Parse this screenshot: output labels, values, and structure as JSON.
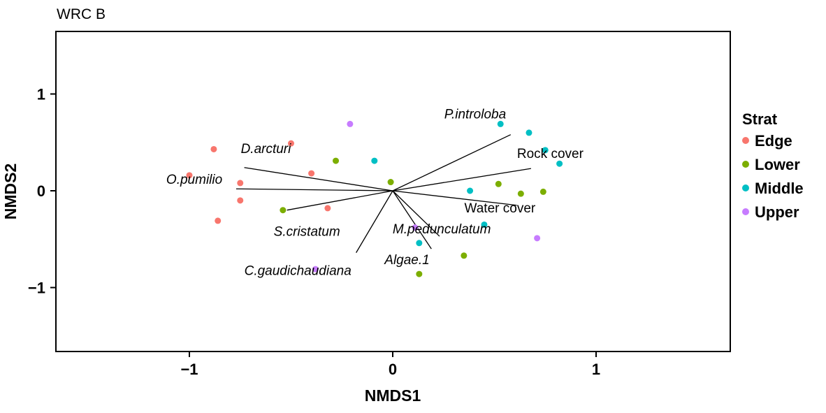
{
  "chart_data": {
    "type": "scatter",
    "title": "WRC B",
    "xlabel": "NMDS1",
    "ylabel": "NMDS2",
    "xlim": [
      -1.65,
      1.65
    ],
    "ylim": [
      -1.65,
      1.65
    ],
    "x_ticks": [
      -1,
      0,
      1
    ],
    "y_ticks": [
      -1,
      0,
      1
    ],
    "x_tick_labels": [
      "−1",
      "0",
      "1"
    ],
    "y_tick_labels": [
      "−1",
      "0",
      "1"
    ],
    "grid": false,
    "legend": {
      "title": "Strat",
      "position": "right"
    },
    "series": [
      {
        "name": "Edge",
        "color": "#F8766D",
        "points": [
          {
            "x": -1.0,
            "y": 0.16
          },
          {
            "x": -0.88,
            "y": 0.43
          },
          {
            "x": -0.75,
            "y": 0.08
          },
          {
            "x": -0.75,
            "y": -0.1
          },
          {
            "x": -0.86,
            "y": -0.31
          },
          {
            "x": -0.5,
            "y": 0.49
          },
          {
            "x": -0.4,
            "y": 0.18
          },
          {
            "x": -0.32,
            "y": -0.18
          }
        ]
      },
      {
        "name": "Lower",
        "color": "#7CAE00",
        "points": [
          {
            "x": -0.28,
            "y": 0.31
          },
          {
            "x": -0.54,
            "y": -0.2
          },
          {
            "x": -0.01,
            "y": 0.09
          },
          {
            "x": 0.13,
            "y": -0.86
          },
          {
            "x": 0.35,
            "y": -0.67
          },
          {
            "x": 0.52,
            "y": 0.07
          },
          {
            "x": 0.63,
            "y": -0.03
          },
          {
            "x": 0.74,
            "y": -0.01
          }
        ]
      },
      {
        "name": "Middle",
        "color": "#00BFC4",
        "points": [
          {
            "x": -0.09,
            "y": 0.31
          },
          {
            "x": 0.53,
            "y": 0.69
          },
          {
            "x": 0.67,
            "y": 0.6
          },
          {
            "x": 0.75,
            "y": 0.42
          },
          {
            "x": 0.82,
            "y": 0.28
          },
          {
            "x": 0.38,
            "y": 0.0
          },
          {
            "x": 0.45,
            "y": -0.35
          },
          {
            "x": 0.13,
            "y": -0.54
          }
        ]
      },
      {
        "name": "Upper",
        "color": "#C77CFF",
        "points": [
          {
            "x": -0.21,
            "y": 0.69
          },
          {
            "x": 0.11,
            "y": -0.38
          },
          {
            "x": 0.71,
            "y": -0.49
          },
          {
            "x": -0.38,
            "y": -0.81
          }
        ]
      }
    ],
    "vectors": [
      {
        "label": "D.arcturi",
        "italic": true,
        "x": -0.73,
        "y": 0.24
      },
      {
        "label": "O.pumilio",
        "italic": true,
        "x": -0.77,
        "y": 0.02
      },
      {
        "label": "S.cristatum",
        "italic": true,
        "x": -0.52,
        "y": -0.2
      },
      {
        "label": "C.gaudichaudiana",
        "italic": true,
        "x": -0.18,
        "y": -0.64
      },
      {
        "label": "P.introloba",
        "italic": true,
        "x": 0.58,
        "y": 0.58
      },
      {
        "label": "Rock cover",
        "italic": false,
        "x": 0.68,
        "y": 0.23
      },
      {
        "label": "Water cover",
        "italic": false,
        "x": 0.61,
        "y": -0.15
      },
      {
        "label": "M.pedunculatum",
        "italic": true,
        "x": 0.23,
        "y": -0.47
      },
      {
        "label": "Algae.1",
        "italic": true,
        "x": 0.19,
        "y": -0.6
      }
    ]
  }
}
